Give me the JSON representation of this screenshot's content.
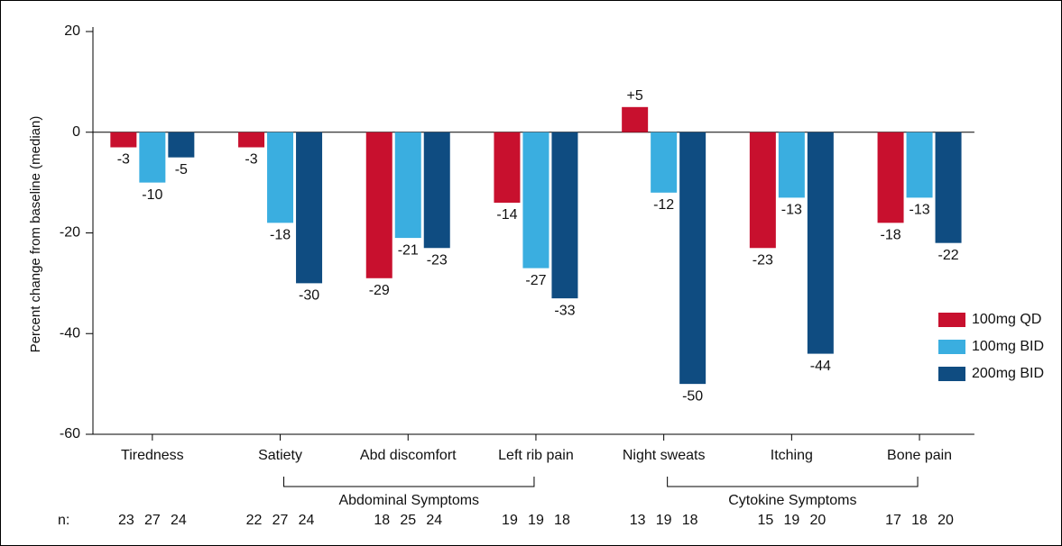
{
  "chart_data": {
    "type": "bar",
    "y_label": "Percent change from baseline (median)",
    "categories": [
      "Tiredness",
      "Satiety",
      "Abd discomfort",
      "Left rib pain",
      "Night sweats",
      "Itching",
      "Bone pain"
    ],
    "series": [
      {
        "name": "100mg QD",
        "color": "#c8102e",
        "values": [
          -3,
          -3,
          -29,
          -14,
          5,
          -23,
          -18
        ],
        "value_labels": [
          "-3",
          "-3",
          "-29",
          "-14",
          "+5",
          "-23",
          "-18"
        ]
      },
      {
        "name": "100mg BID",
        "color": "#3aaee0",
        "values": [
          -10,
          -18,
          -21,
          -27,
          -12,
          -13,
          -13
        ]
      },
      {
        "name": "200mg BID",
        "color": "#0f4c81",
        "values": [
          -5,
          -30,
          -23,
          -33,
          -50,
          -44,
          -22
        ]
      }
    ],
    "ylim": [
      -60,
      20
    ],
    "yticks": [
      -60,
      -40,
      -20,
      0,
      20
    ],
    "groups": [
      {
        "label": "Abdominal Symptoms",
        "members": [
          "Satiety",
          "Abd discomfort",
          "Left rib pain"
        ]
      },
      {
        "label": "Cytokine Symptoms",
        "members": [
          "Night sweats",
          "Itching",
          "Bone pain"
        ]
      }
    ],
    "n_label": "n:",
    "n": [
      [
        23,
        27,
        24
      ],
      [
        22,
        27,
        24
      ],
      [
        18,
        25,
        24
      ],
      [
        19,
        19,
        18
      ],
      [
        13,
        19,
        18
      ],
      [
        15,
        19,
        20
      ],
      [
        17,
        18,
        20
      ]
    ],
    "legend": "right"
  }
}
